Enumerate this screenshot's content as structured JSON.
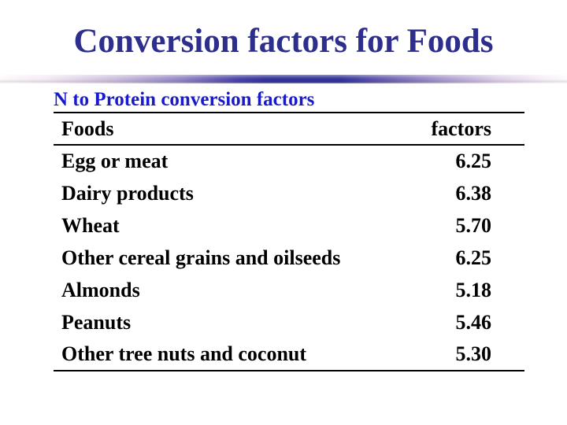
{
  "slide": {
    "title": "Conversion factors for Foods",
    "table": {
      "caption": "N to Protein conversion factors",
      "columns": {
        "food": "Foods",
        "factor": "factors"
      },
      "rows": [
        {
          "food": "Egg or meat",
          "factor": "6.25"
        },
        {
          "food": "Dairy products",
          "factor": "6.38"
        },
        {
          "food": "Wheat",
          "factor": "5.70"
        },
        {
          "food": "Other cereal grains and oilseeds",
          "factor": "6.25"
        },
        {
          "food": "Almonds",
          "factor": "5.18"
        },
        {
          "food": "Peanuts",
          "factor": "5.46"
        },
        {
          "food": "Other tree nuts and coconut",
          "factor": "5.30"
        }
      ]
    },
    "colors": {
      "title_text": "#2e2e8c",
      "caption_text": "#1a1acd",
      "body_text": "#000000",
      "divider_dark": "#34349c",
      "divider_light": "#f5ebf5",
      "background": "#ffffff"
    }
  }
}
